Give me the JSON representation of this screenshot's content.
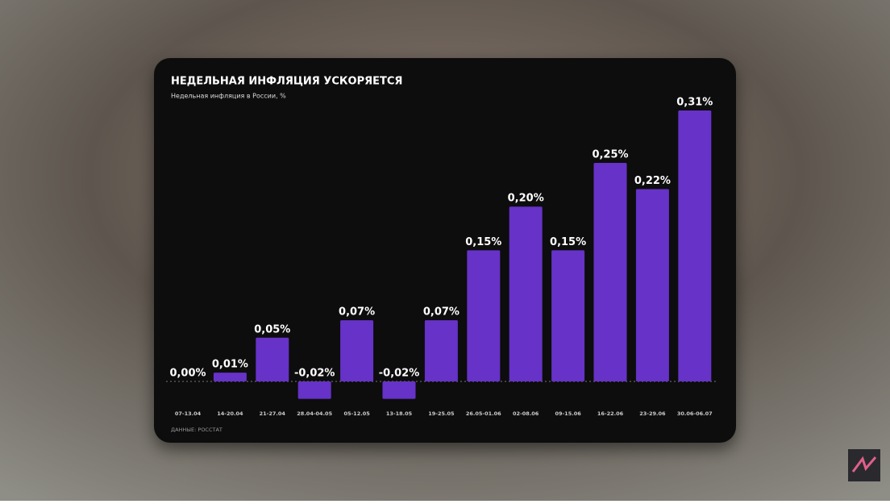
{
  "chart_data": {
    "type": "bar",
    "title": "НЕДЕЛЬНАЯ ИНФЛЯЦИЯ УСКОРЯЕТСЯ",
    "subtitle": "Недельная инфляция в России, %",
    "source": "ДАННЫЕ: РОССТАТ",
    "categories": [
      "07-13.04",
      "14-20.04",
      "21-27.04",
      "28.04-04.05",
      "05-12.05",
      "13-18.05",
      "19-25.05",
      "26.05-01.06",
      "02-08.06",
      "09-15.06",
      "16-22.06",
      "23-29.06",
      "30.06-06.07"
    ],
    "values": [
      0.0,
      0.01,
      0.05,
      -0.02,
      0.07,
      -0.02,
      0.07,
      0.15,
      0.2,
      0.15,
      0.25,
      0.22,
      0.31
    ],
    "value_labels": [
      "0,00%",
      "0,01%",
      "0,05%",
      "-0,02%",
      "0,07%",
      "-0,02%",
      "0,07%",
      "0,15%",
      "0,20%",
      "0,15%",
      "0,25%",
      "0,22%",
      "0,31%"
    ],
    "color": "#6632c8"
  }
}
